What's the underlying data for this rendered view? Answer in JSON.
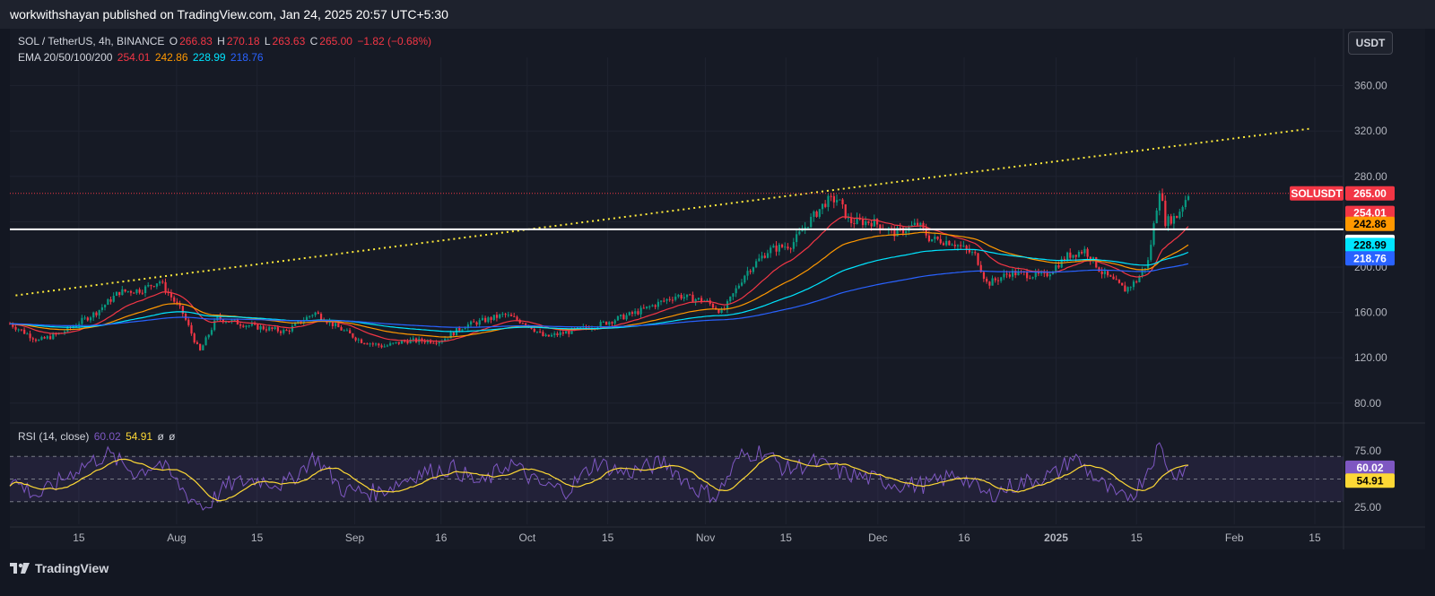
{
  "header": {
    "published": "workwithshayan published on TradingView.com, Jan 24, 2025 20:57 UTC+5:30"
  },
  "legend": {
    "symbol": "SOL / TetherUS, 4h, BINANCE",
    "open_label": "O",
    "open": "266.83",
    "high_label": "H",
    "high": "270.18",
    "low_label": "L",
    "low": "263.63",
    "close_label": "C",
    "close": "265.00",
    "change": "−1.82 (−0.68%)",
    "ema_title": "EMA 20/50/100/200",
    "ema20": "254.01",
    "ema50": "242.86",
    "ema100": "228.99",
    "ema200": "218.76",
    "rsi_title": "RSI (14, close)",
    "rsi_value": "60.02",
    "rsi_ma": "54.91",
    "rsi_extra1": "ø",
    "rsi_extra2": "ø"
  },
  "currency_button": "USDT",
  "footer": {
    "brand": "TradingView"
  },
  "colors": {
    "candle_up": "#089981",
    "candle_down": "#f23645",
    "ema20": "#f23645",
    "ema50": "#ff9800",
    "ema100": "#00e5ff",
    "ema200": "#2962ff",
    "rsi_line": "#7e57c2",
    "rsi_ma": "#fdd835",
    "trendline": "#ffeb3b",
    "support": "#ffffff"
  },
  "chart_data": {
    "type": "line",
    "price_axis": {
      "ticks": [
        80,
        120,
        160,
        200,
        240,
        280,
        320,
        360
      ],
      "tick_labels": [
        "80.00",
        "120.00",
        "160.00",
        "200.00",
        "240.00",
        "280.00",
        "320.00",
        "360.00"
      ],
      "range": [
        64,
        385
      ]
    },
    "rsi_axis": {
      "ticks": [
        25,
        75
      ],
      "tick_labels": [
        "25.00",
        "75.00"
      ],
      "bands": [
        30,
        50,
        70
      ],
      "range": [
        10,
        90
      ]
    },
    "time_axis": {
      "start": "2024-07-03",
      "end": "2025-02-20",
      "ticks": [
        {
          "date": "2024-07-15",
          "label": "15"
        },
        {
          "date": "2024-08-01",
          "label": "Aug"
        },
        {
          "date": "2024-08-15",
          "label": "15"
        },
        {
          "date": "2024-09-01",
          "label": "Sep"
        },
        {
          "date": "2024-09-16",
          "label": "16"
        },
        {
          "date": "2024-10-01",
          "label": "Oct"
        },
        {
          "date": "2024-10-15",
          "label": "15"
        },
        {
          "date": "2024-11-01",
          "label": "Nov"
        },
        {
          "date": "2024-11-15",
          "label": "15"
        },
        {
          "date": "2024-12-01",
          "label": "Dec"
        },
        {
          "date": "2024-12-16",
          "label": "16"
        },
        {
          "date": "2025-01-01",
          "label": "2025"
        },
        {
          "date": "2025-01-15",
          "label": "15"
        },
        {
          "date": "2025-02-01",
          "label": "Feb"
        },
        {
          "date": "2025-02-15",
          "label": "15"
        }
      ]
    },
    "price_path": [
      [
        "2024-07-03",
        150
      ],
      [
        "2024-07-08",
        135
      ],
      [
        "2024-07-12",
        142
      ],
      [
        "2024-07-18",
        160
      ],
      [
        "2024-07-22",
        178
      ],
      [
        "2024-07-26",
        180
      ],
      [
        "2024-07-29",
        188
      ],
      [
        "2024-08-02",
        160
      ],
      [
        "2024-08-05",
        125
      ],
      [
        "2024-08-08",
        155
      ],
      [
        "2024-08-14",
        148
      ],
      [
        "2024-08-20",
        143
      ],
      [
        "2024-08-25",
        160
      ],
      [
        "2024-08-28",
        150
      ],
      [
        "2024-09-02",
        135
      ],
      [
        "2024-09-06",
        130
      ],
      [
        "2024-09-10",
        135
      ],
      [
        "2024-09-16",
        135
      ],
      [
        "2024-09-20",
        148
      ],
      [
        "2024-09-27",
        158
      ],
      [
        "2024-10-01",
        150
      ],
      [
        "2024-10-04",
        138
      ],
      [
        "2024-10-10",
        145
      ],
      [
        "2024-10-14",
        150
      ],
      [
        "2024-10-20",
        160
      ],
      [
        "2024-10-27",
        175
      ],
      [
        "2024-11-01",
        170
      ],
      [
        "2024-11-04",
        160
      ],
      [
        "2024-11-08",
        195
      ],
      [
        "2024-11-12",
        215
      ],
      [
        "2024-11-16",
        220
      ],
      [
        "2024-11-19",
        240
      ],
      [
        "2024-11-22",
        258
      ],
      [
        "2024-11-24",
        260
      ],
      [
        "2024-11-26",
        240
      ],
      [
        "2024-11-30",
        240
      ],
      [
        "2024-12-04",
        230
      ],
      [
        "2024-12-08",
        238
      ],
      [
        "2024-12-10",
        225
      ],
      [
        "2024-12-14",
        222
      ],
      [
        "2024-12-18",
        210
      ],
      [
        "2024-12-20",
        185
      ],
      [
        "2024-12-24",
        195
      ],
      [
        "2024-12-30",
        192
      ],
      [
        "2025-01-03",
        210
      ],
      [
        "2025-01-06",
        215
      ],
      [
        "2025-01-09",
        195
      ],
      [
        "2025-01-13",
        180
      ],
      [
        "2025-01-15",
        188
      ],
      [
        "2025-01-17",
        205
      ],
      [
        "2025-01-19",
        270
      ],
      [
        "2025-01-20",
        240
      ],
      [
        "2025-01-22",
        245
      ],
      [
        "2025-01-24",
        265
      ]
    ],
    "series": [
      {
        "name": "SOLUSDT",
        "last": 265.0,
        "label": "265.00"
      },
      {
        "name": "EMA 20",
        "last": 254.01,
        "label": "254.01"
      },
      {
        "name": "EMA 50",
        "last": 242.86,
        "label": "242.86"
      },
      {
        "name": "EMA 100",
        "last": 228.99,
        "label": "228.99"
      },
      {
        "name": "EMA 200",
        "last": 218.76,
        "label": "218.76"
      }
    ],
    "support_level": {
      "value": 233.33,
      "label": "233.33"
    },
    "trendline": {
      "from": [
        "2024-07-04",
        175
      ],
      "to": [
        "2025-02-14",
        322
      ]
    },
    "rsi": {
      "path": [
        [
          "2024-07-03",
          50
        ],
        [
          "2024-07-08",
          35
        ],
        [
          "2024-07-15",
          60
        ],
        [
          "2024-07-20",
          72
        ],
        [
          "2024-07-25",
          55
        ],
        [
          "2024-07-29",
          65
        ],
        [
          "2024-08-03",
          35
        ],
        [
          "2024-08-06",
          25
        ],
        [
          "2024-08-10",
          45
        ],
        [
          "2024-08-15",
          50
        ],
        [
          "2024-08-20",
          45
        ],
        [
          "2024-08-25",
          70
        ],
        [
          "2024-08-30",
          40
        ],
        [
          "2024-09-05",
          38
        ],
        [
          "2024-09-12",
          55
        ],
        [
          "2024-09-18",
          60
        ],
        [
          "2024-09-23",
          45
        ],
        [
          "2024-09-28",
          65
        ],
        [
          "2024-10-03",
          45
        ],
        [
          "2024-10-08",
          40
        ],
        [
          "2024-10-13",
          65
        ],
        [
          "2024-10-18",
          55
        ],
        [
          "2024-10-25",
          65
        ],
        [
          "2024-10-30",
          42
        ],
        [
          "2024-11-03",
          35
        ],
        [
          "2024-11-07",
          70
        ],
        [
          "2024-11-11",
          75
        ],
        [
          "2024-11-15",
          58
        ],
        [
          "2024-11-20",
          65
        ],
        [
          "2024-11-25",
          55
        ],
        [
          "2024-11-30",
          50
        ],
        [
          "2024-12-05",
          45
        ],
        [
          "2024-12-10",
          45
        ],
        [
          "2024-12-15",
          55
        ],
        [
          "2024-12-20",
          35
        ],
        [
          "2024-12-25",
          45
        ],
        [
          "2025-01-01",
          55
        ],
        [
          "2025-01-04",
          70
        ],
        [
          "2025-01-08",
          50
        ],
        [
          "2025-01-12",
          32
        ],
        [
          "2025-01-15",
          40
        ],
        [
          "2025-01-18",
          70
        ],
        [
          "2025-01-19",
          80
        ],
        [
          "2025-01-21",
          55
        ],
        [
          "2025-01-24",
          60
        ]
      ],
      "last": 60.02,
      "ma_last": 54.91
    }
  }
}
